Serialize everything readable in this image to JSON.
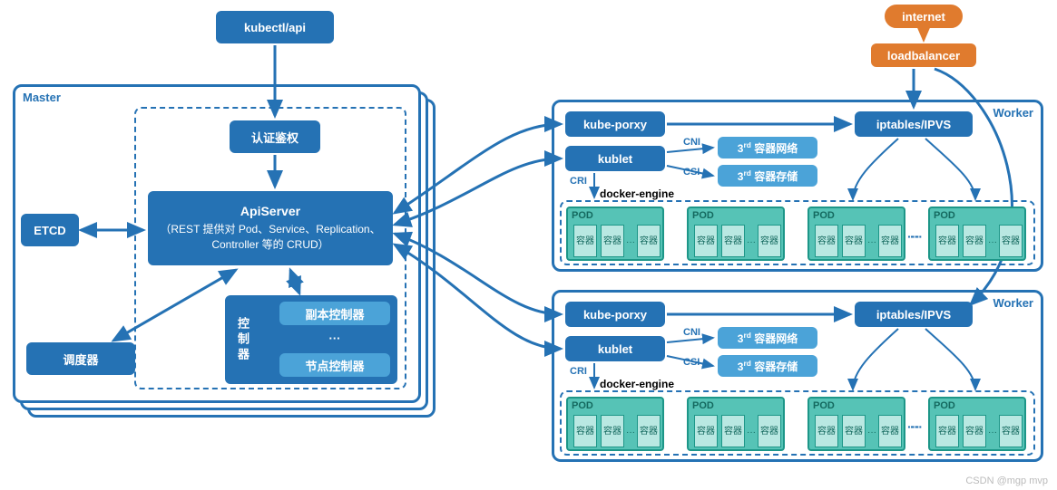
{
  "type": "flowchart",
  "colors": {
    "primary": "#2572b4",
    "secondary": "#4ba3d8",
    "orange": "#e07b2e",
    "pod_border": "#1d9688",
    "pod_fill": "#56c3b6",
    "pod_inner": "#b9e8e2",
    "text_white": "#ffffff"
  },
  "nodes": {
    "kubectl": "kubectl/api",
    "internet": "internet",
    "loadbalancer": "loadbalancer",
    "master_label": "Master",
    "auth": "认证鉴权",
    "etcd": "ETCD",
    "apiserver_title": "ApiServer",
    "apiserver_sub": "（REST 提供对 Pod、Service、Replication、Controller 等的 CRUD）",
    "scheduler": "调度器",
    "ctrl_label": "控制器",
    "replica_ctrl": "副本控制器",
    "ctrl_dots": "···",
    "node_ctrl": "节点控制器",
    "worker_label": "Worker",
    "kube_proxy": "kube-porxy",
    "kublet": "kublet",
    "iptables": "iptables/IPVS",
    "cni": "CNI",
    "csi": "CSI",
    "cri": "CRI",
    "net_3rd_pre": "3",
    "net_3rd_sup": "rd",
    "net_3rd_suf": " 容器网络",
    "store_3rd_suf": " 容器存储",
    "docker_engine": "docker-engine",
    "pod": "POD",
    "container": "容器",
    "dots": "···"
  },
  "watermark": "CSDN @mgp mvp"
}
